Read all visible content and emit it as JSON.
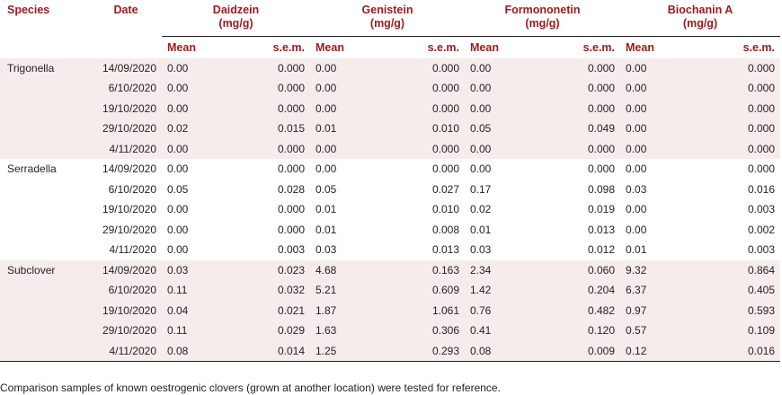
{
  "header": {
    "species": "Species",
    "date": "Date",
    "groups": [
      {
        "name": "Daidzein",
        "unit": "(mg/g)"
      },
      {
        "name": "Genistein",
        "unit": "(mg/g)"
      },
      {
        "name": "Formononetin",
        "unit": "(mg/g)"
      },
      {
        "name": "Biochanin A",
        "unit": "(mg/g)"
      }
    ],
    "mean": "Mean",
    "sem": "s.e.m."
  },
  "groups": [
    {
      "species": "Trigonella",
      "rows": [
        [
          "14/09/2020",
          "0.00",
          "0.000",
          "0.00",
          "0.000",
          "0.00",
          "0.000",
          "0.00",
          "0.000"
        ],
        [
          "6/10/2020",
          "0.00",
          "0.000",
          "0.00",
          "0.000",
          "0.00",
          "0.000",
          "0.00",
          "0.000"
        ],
        [
          "19/10/2020",
          "0.00",
          "0.000",
          "0.00",
          "0.000",
          "0.00",
          "0.000",
          "0.00",
          "0.000"
        ],
        [
          "29/10/2020",
          "0.02",
          "0.015",
          "0.01",
          "0.010",
          "0.05",
          "0.049",
          "0.00",
          "0.000"
        ],
        [
          "4/11/2020",
          "0.00",
          "0.000",
          "0.00",
          "0.000",
          "0.00",
          "0.000",
          "0.00",
          "0.000"
        ]
      ]
    },
    {
      "species": "Serradella",
      "rows": [
        [
          "14/09/2020",
          "0.00",
          "0.000",
          "0.00",
          "0.000",
          "0.00",
          "0.000",
          "0.00",
          "0.000"
        ],
        [
          "6/10/2020",
          "0.05",
          "0.028",
          "0.05",
          "0.027",
          "0.17",
          "0.098",
          "0.03",
          "0.016"
        ],
        [
          "19/10/2020",
          "0.00",
          "0.000",
          "0.01",
          "0.010",
          "0.02",
          "0.019",
          "0.00",
          "0.003"
        ],
        [
          "29/10/2020",
          "0.00",
          "0.000",
          "0.01",
          "0.008",
          "0.01",
          "0.013",
          "0.00",
          "0.002"
        ],
        [
          "4/11/2020",
          "0.00",
          "0.003",
          "0.03",
          "0.013",
          "0.03",
          "0.012",
          "0.01",
          "0.003"
        ]
      ]
    },
    {
      "species": "Subclover",
      "rows": [
        [
          "14/09/2020",
          "0.03",
          "0.023",
          "4.68",
          "0.163",
          "2.34",
          "0.060",
          "9.32",
          "0.864"
        ],
        [
          "6/10/2020",
          "0.11",
          "0.032",
          "5.21",
          "0.609",
          "1.42",
          "0.204",
          "6.37",
          "0.405"
        ],
        [
          "19/10/2020",
          "0.04",
          "0.021",
          "1.87",
          "1.061",
          "0.76",
          "0.482",
          "0.97",
          "0.593"
        ],
        [
          "29/10/2020",
          "0.11",
          "0.029",
          "1.63",
          "0.306",
          "0.41",
          "0.120",
          "0.57",
          "0.109"
        ],
        [
          "4/11/2020",
          "0.08",
          "0.014",
          "1.25",
          "0.293",
          "0.08",
          "0.009",
          "0.12",
          "0.016"
        ]
      ]
    }
  ],
  "footnote": "Comparison samples of known oestrogenic clovers (grown at another location) were tested for reference."
}
